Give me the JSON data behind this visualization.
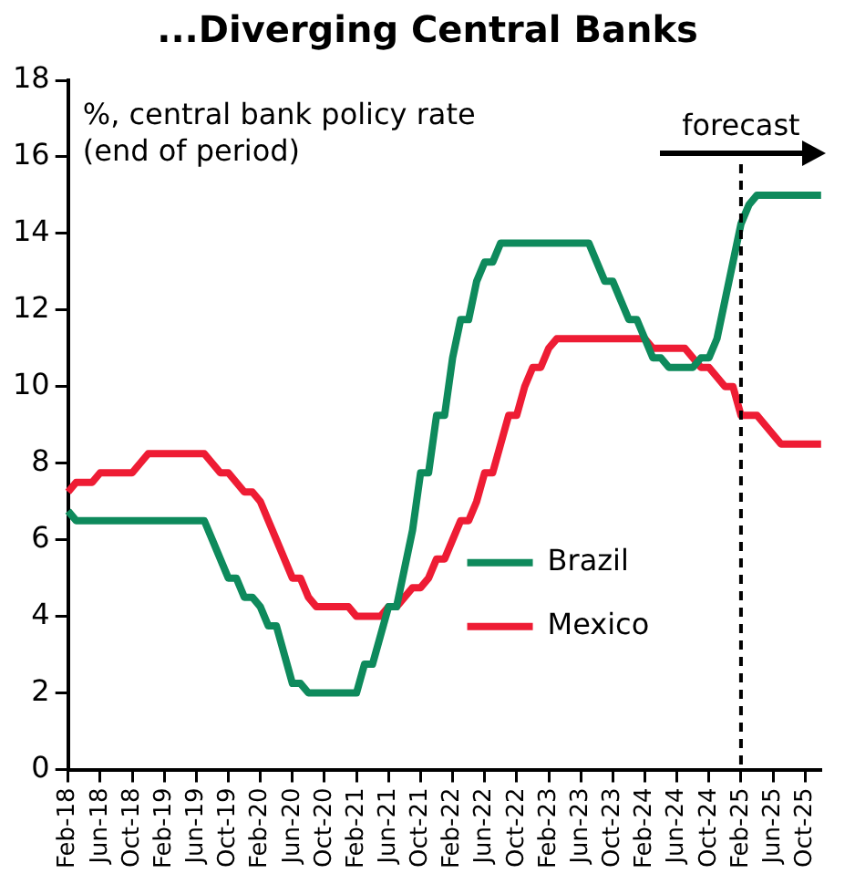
{
  "chart_data": {
    "type": "line",
    "title": "...Diverging Central Banks",
    "ylabel": "%, central bank policy rate\n(end of period)",
    "categories": [
      "Feb-18",
      null,
      null,
      null,
      "Jun-18",
      null,
      null,
      null,
      "Oct-18",
      null,
      null,
      null,
      "Feb-19",
      null,
      null,
      null,
      "Jun-19",
      null,
      null,
      null,
      "Oct-19",
      null,
      null,
      null,
      "Feb-20",
      null,
      null,
      null,
      "Jun-20",
      null,
      null,
      null,
      "Oct-20",
      null,
      null,
      null,
      "Feb-21",
      null,
      null,
      null,
      "Jun-21",
      null,
      null,
      null,
      "Oct-21",
      null,
      null,
      null,
      "Feb-22",
      null,
      null,
      null,
      "Jun-22",
      null,
      null,
      null,
      "Oct-22",
      null,
      null,
      null,
      "Feb-23",
      null,
      null,
      null,
      "Jun-23",
      null,
      null,
      null,
      "Oct-23",
      null,
      null,
      null,
      "Feb-24",
      null,
      null,
      null,
      "Jun-24",
      null,
      null,
      null,
      "Oct-24",
      null,
      null,
      null,
      "Feb-25",
      null,
      null,
      null,
      "Jun-25",
      null,
      null,
      null,
      "Oct-25",
      null,
      null
    ],
    "series": [
      {
        "name": "Brazil",
        "color": "#0e8a5c",
        "values": [
          6.75,
          6.5,
          6.5,
          6.5,
          6.5,
          6.5,
          6.5,
          6.5,
          6.5,
          6.5,
          6.5,
          6.5,
          6.5,
          6.5,
          6.5,
          6.5,
          6.5,
          6.5,
          6.0,
          5.5,
          5.0,
          5.0,
          4.5,
          4.5,
          4.25,
          3.75,
          3.75,
          3.0,
          2.25,
          2.25,
          2.0,
          2.0,
          2.0,
          2.0,
          2.0,
          2.0,
          2.0,
          2.75,
          2.75,
          3.5,
          4.25,
          4.25,
          5.25,
          6.25,
          7.75,
          7.75,
          9.25,
          9.25,
          10.75,
          11.75,
          11.75,
          12.75,
          13.25,
          13.25,
          13.75,
          13.75,
          13.75,
          13.75,
          13.75,
          13.75,
          13.75,
          13.75,
          13.75,
          13.75,
          13.75,
          13.75,
          13.25,
          12.75,
          12.75,
          12.25,
          11.75,
          11.75,
          11.25,
          10.75,
          10.75,
          10.5,
          10.5,
          10.5,
          10.5,
          10.75,
          10.75,
          11.25,
          12.25,
          13.25,
          14.25,
          14.75,
          15.0,
          15.0,
          15.0,
          15.0,
          15.0,
          15.0,
          15.0,
          15.0,
          15.0
        ]
      },
      {
        "name": "Mexico",
        "color": "#ee1c34",
        "values": [
          7.25,
          7.5,
          7.5,
          7.5,
          7.75,
          7.75,
          7.75,
          7.75,
          7.75,
          8.0,
          8.25,
          8.25,
          8.25,
          8.25,
          8.25,
          8.25,
          8.25,
          8.25,
          8.0,
          7.75,
          7.75,
          7.5,
          7.25,
          7.25,
          7.0,
          6.5,
          6.0,
          5.5,
          5.0,
          5.0,
          4.5,
          4.25,
          4.25,
          4.25,
          4.25,
          4.25,
          4.0,
          4.0,
          4.0,
          4.0,
          4.25,
          4.25,
          4.5,
          4.75,
          4.75,
          5.0,
          5.5,
          5.5,
          6.0,
          6.5,
          6.5,
          7.0,
          7.75,
          7.75,
          8.5,
          9.25,
          9.25,
          10.0,
          10.5,
          10.5,
          11.0,
          11.25,
          11.25,
          11.25,
          11.25,
          11.25,
          11.25,
          11.25,
          11.25,
          11.25,
          11.25,
          11.25,
          11.25,
          11.0,
          11.0,
          11.0,
          11.0,
          11.0,
          10.75,
          10.5,
          10.5,
          10.25,
          10.0,
          10.0,
          9.25,
          9.25,
          9.25,
          9.0,
          8.75,
          8.5,
          8.5,
          8.5,
          8.5,
          8.5,
          8.5
        ]
      }
    ],
    "ylim": [
      0,
      18
    ],
    "yticks": [
      0,
      2,
      4,
      6,
      8,
      10,
      12,
      14,
      16,
      18
    ],
    "grid": false,
    "legend": "bottom right",
    "ref_lines": [
      {
        "axis": "x",
        "value": "Feb-25",
        "label": "forecast",
        "line_style": "dashed",
        "color": "#000000"
      }
    ]
  }
}
